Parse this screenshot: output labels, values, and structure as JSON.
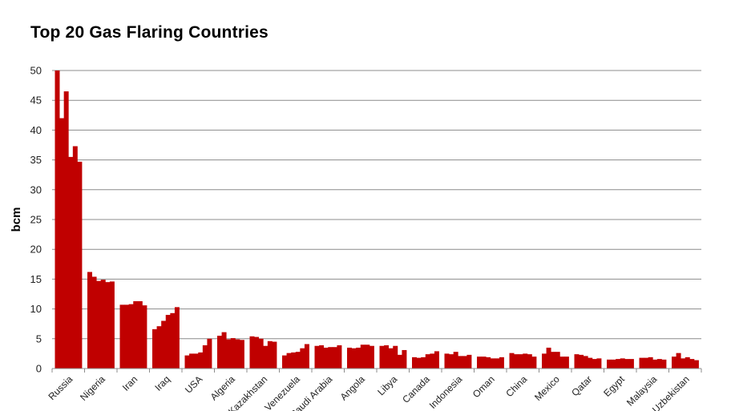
{
  "chart_data": {
    "type": "bar",
    "title": "Top 20 Gas Flaring Countries",
    "xlabel": "",
    "ylabel": "bcm",
    "ylim": [
      0,
      50
    ],
    "yticks": [
      0,
      5,
      10,
      15,
      20,
      25,
      30,
      35,
      40,
      45,
      50
    ],
    "grid": true,
    "color": "#C00000",
    "categories": [
      "Russia",
      "Nigeria",
      "Iran",
      "Iraq",
      "USA",
      "Algeria",
      "Kazakhstan",
      "Venezuela",
      "Saudi Arabia",
      "Angola",
      "Libya",
      "Canada",
      "Indonesia",
      "Oman",
      "China",
      "Mexico",
      "Qatar",
      "Egypt",
      "Malaysia",
      "Uzbekistan"
    ],
    "values": [
      [
        50.0,
        42.0,
        46.5,
        35.5,
        37.3,
        34.7
      ],
      [
        16.2,
        15.4,
        14.7,
        14.9,
        14.5,
        14.6
      ],
      [
        10.7,
        10.7,
        10.8,
        11.3,
        11.3,
        10.6
      ],
      [
        6.6,
        7.1,
        8.0,
        9.0,
        9.3,
        10.3
      ],
      [
        2.2,
        2.5,
        2.5,
        2.7,
        3.9,
        5.0
      ],
      [
        5.5,
        6.1,
        4.9,
        5.1,
        4.9,
        4.8
      ],
      [
        5.4,
        5.3,
        5.0,
        3.8,
        4.6,
        4.5
      ],
      [
        2.2,
        2.6,
        2.7,
        2.8,
        3.4,
        4.1
      ],
      [
        3.8,
        3.9,
        3.5,
        3.6,
        3.6,
        3.9
      ],
      [
        3.5,
        3.4,
        3.5,
        4.0,
        4.0,
        3.8
      ],
      [
        3.8,
        3.9,
        3.4,
        3.8,
        2.3,
        3.1
      ],
      [
        1.9,
        1.8,
        1.9,
        2.4,
        2.5,
        2.9
      ],
      [
        2.5,
        2.4,
        2.8,
        2.1,
        2.1,
        2.3
      ],
      [
        2.0,
        2.0,
        1.9,
        1.7,
        1.7,
        1.9
      ],
      [
        2.6,
        2.4,
        2.4,
        2.5,
        2.4,
        2.0
      ],
      [
        2.5,
        3.5,
        2.8,
        2.8,
        2.0,
        2.0
      ],
      [
        2.4,
        2.3,
        2.1,
        1.8,
        1.6,
        1.7
      ],
      [
        1.5,
        1.5,
        1.6,
        1.7,
        1.6,
        1.6
      ],
      [
        1.8,
        1.8,
        1.9,
        1.5,
        1.6,
        1.5
      ],
      [
        2.0,
        2.6,
        1.7,
        1.9,
        1.6,
        1.4
      ]
    ]
  }
}
